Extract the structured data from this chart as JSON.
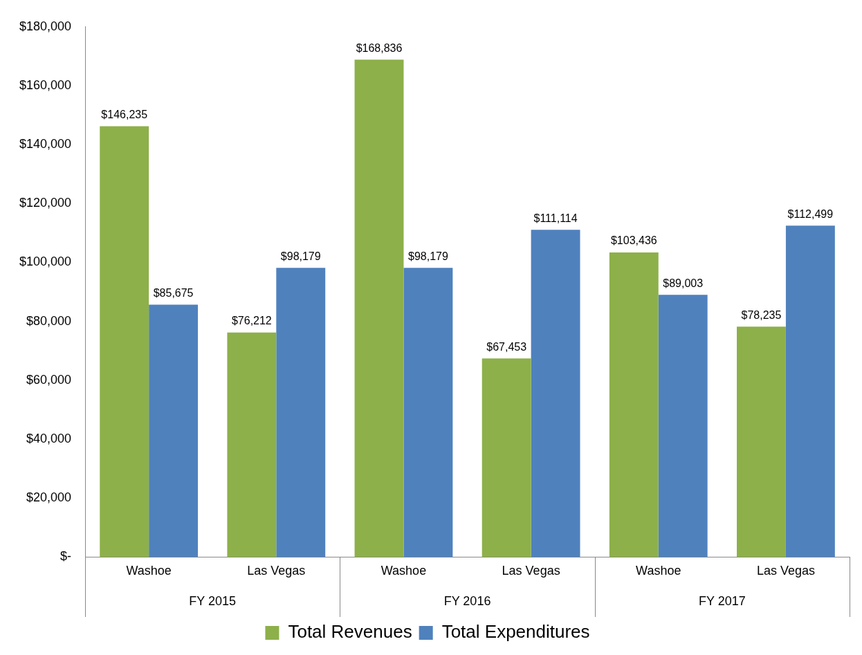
{
  "chart_data": {
    "type": "bar",
    "categories": [
      "Washoe",
      "Las Vegas",
      "Washoe",
      "Las Vegas",
      "Washoe",
      "Las Vegas"
    ],
    "series": [
      {
        "name": "Total Revenues",
        "color": "#8db04a",
        "values": [
          146235,
          76212,
          168836,
          67453,
          103436,
          78235
        ],
        "value_labels": [
          "$146,235",
          "$76,212",
          "$168,836",
          "$67,453",
          "$103,436",
          "$78,235"
        ]
      },
      {
        "name": "Total Expenditures",
        "color": "#4f81bd",
        "values": [
          85675,
          98179,
          98179,
          111114,
          89003,
          112499
        ],
        "value_labels": [
          "$85,675",
          "$98,179",
          "$98,179",
          "$111,114",
          "$89,003",
          "$112,499"
        ]
      }
    ],
    "annotations": [
      "FY 2015",
      "FY 2016",
      "FY 2017"
    ],
    "ylim": [
      0,
      180000
    ],
    "yticks": [
      {
        "value": 0,
        "label": "$-"
      },
      {
        "value": 20000,
        "label": "$20,000"
      },
      {
        "value": 40000,
        "label": "$40,000"
      },
      {
        "value": 60000,
        "label": "$60,000"
      },
      {
        "value": 80000,
        "label": "$80,000"
      },
      {
        "value": 100000,
        "label": "$100,000"
      },
      {
        "value": 120000,
        "label": "$120,000"
      },
      {
        "value": 140000,
        "label": "$140,000"
      },
      {
        "value": 160000,
        "label": "$160,000"
      },
      {
        "value": 180000,
        "label": "$180,000"
      }
    ],
    "grid": false,
    "legend": "bottom"
  }
}
